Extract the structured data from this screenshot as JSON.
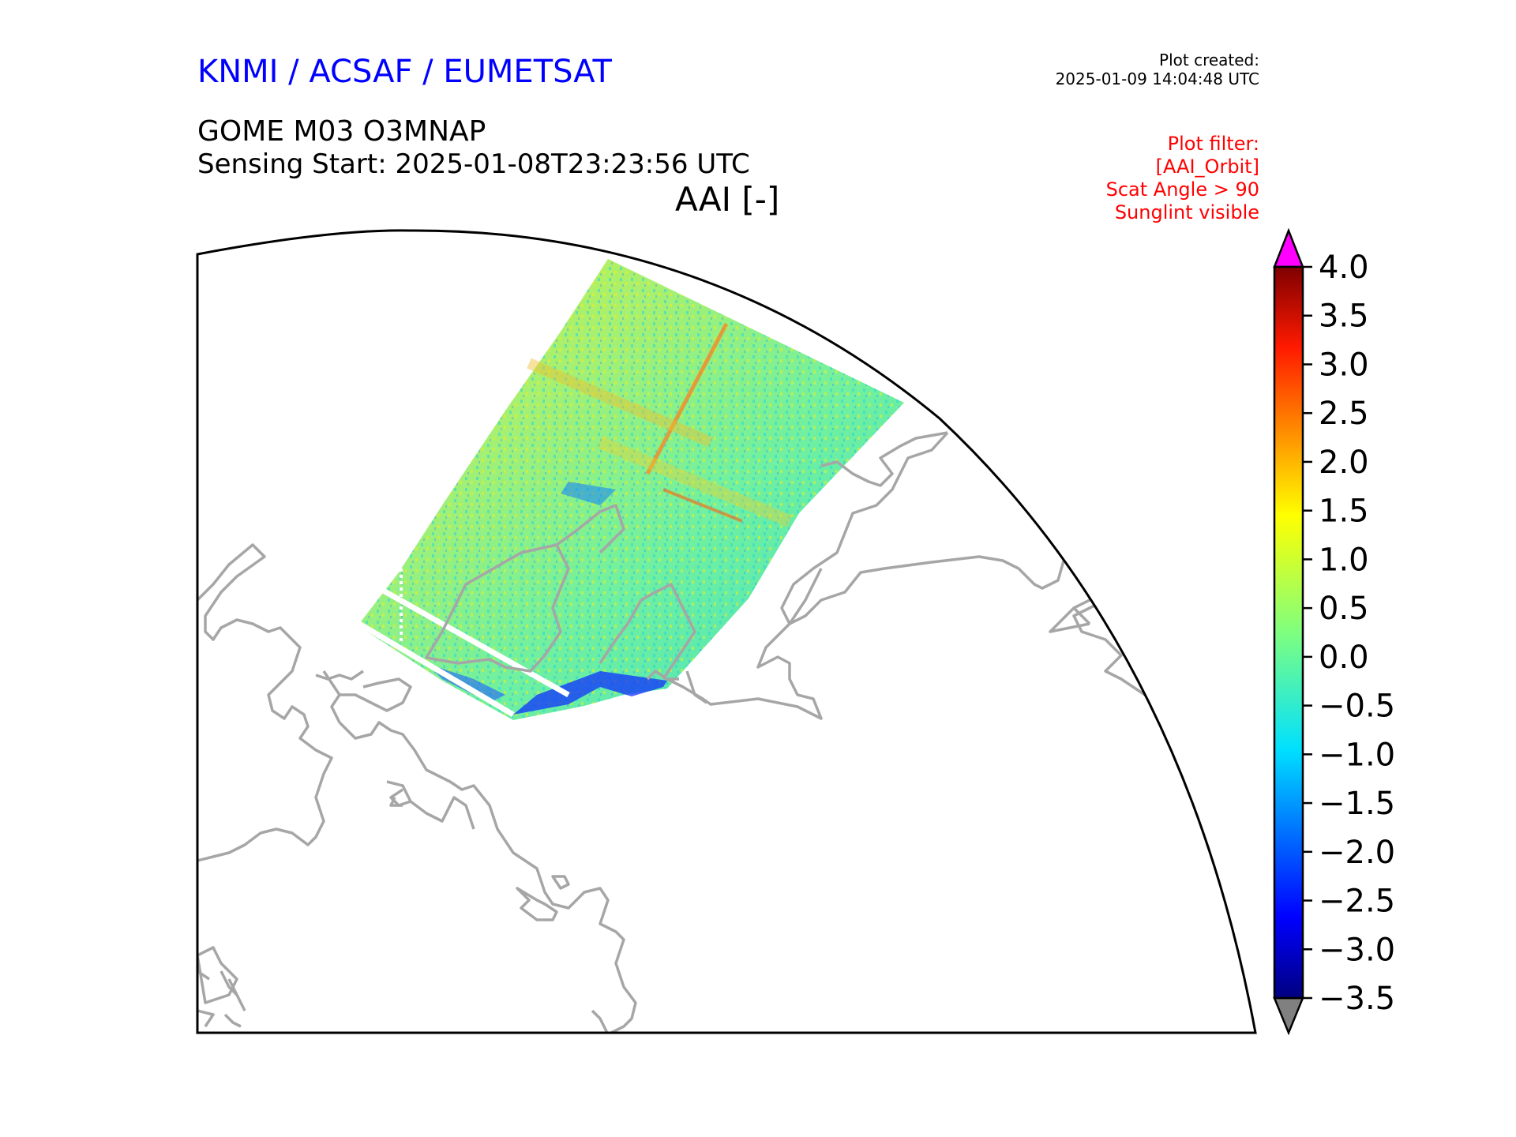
{
  "header": {
    "organization": "KNMI / ACSAF / EUMETSAT",
    "plot_created_label": "Plot created:",
    "plot_created_value": "2025-01-09 14:04:48 UTC",
    "product": "GOME M03 O3MNAP",
    "sensing_start": "Sensing Start: 2025-01-08T23:23:56 UTC",
    "variable_title": "AAI [-]",
    "filters": [
      "Plot filter:",
      "[AAI_Orbit]",
      "Scat Angle > 90",
      "Sunglint visible"
    ]
  },
  "colorbar": {
    "ticks": [
      "4.0",
      "3.5",
      "3.0",
      "2.5",
      "2.0",
      "1.5",
      "1.0",
      "0.5",
      "0.0",
      "−0.5",
      "−1.0",
      "−1.5",
      "−2.0",
      "−2.5",
      "−3.0",
      "−3.5"
    ],
    "min": -3.5,
    "max": 4.0,
    "colormap": "jet",
    "over_color": "#ff00ff",
    "under_color": "#808080"
  },
  "map": {
    "coastline_color": "#a6a6a6"
  }
}
